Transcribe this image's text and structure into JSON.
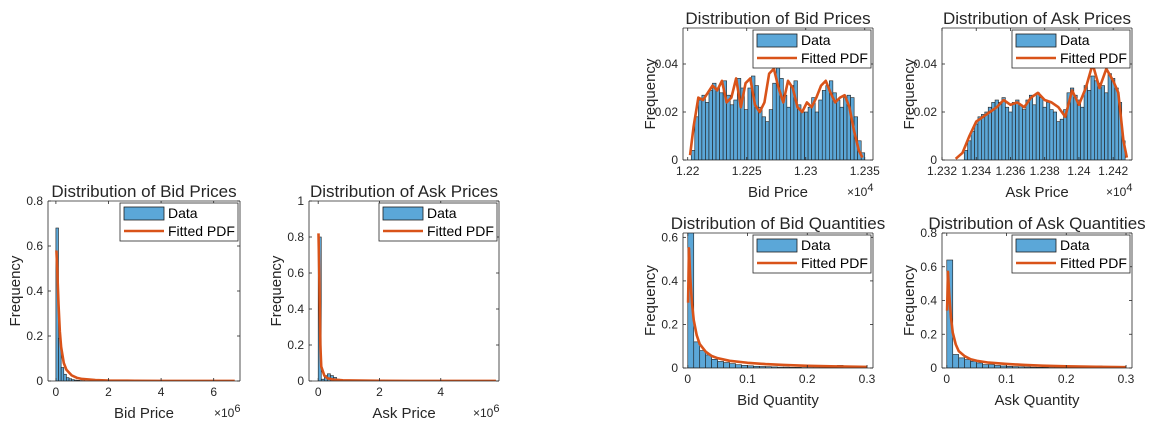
{
  "colors": {
    "bar_fill": "#5ba7d8",
    "bar_edge": "#1f1f1f",
    "pdf_line": "#d95319",
    "axes": "#262626"
  },
  "legend": {
    "data": "Data",
    "fitted": "Fitted PDF"
  },
  "chart_data": [
    {
      "type": "bar",
      "title": "Distribution of Bid Prices",
      "xlabel": "Bid Price",
      "ylabel": "Frequency",
      "x_exponent": "×10^6",
      "xlim": [
        -0.3,
        7.0
      ],
      "ylim": [
        0,
        0.8
      ],
      "xticks": [
        0,
        2,
        4,
        6
      ],
      "xtick_labels": [
        "0",
        "2",
        "4",
        "6"
      ],
      "yticks": [
        0,
        0.2,
        0.4,
        0.6,
        0.8
      ],
      "ytick_labels": [
        "0",
        "0.2",
        "0.4",
        "0.6",
        "0.8"
      ],
      "bin_width": 0.1,
      "bins_x": [
        0,
        0.1,
        0.2,
        0.3,
        0.4,
        0.5,
        0.6,
        0.7,
        0.8,
        0.9,
        1.0
      ],
      "bins_y": [
        0.68,
        0.19,
        0.06,
        0.03,
        0.015,
        0.01,
        0.006,
        0.004,
        0.003,
        0.002,
        0.001
      ],
      "pdf_x": [
        0.02,
        0.05,
        0.1,
        0.15,
        0.2,
        0.3,
        0.4,
        0.6,
        0.8,
        1.0,
        1.5,
        2.0,
        3.0,
        4.0,
        5.0,
        6.0,
        6.8
      ],
      "pdf_y": [
        0.58,
        0.5,
        0.34,
        0.22,
        0.15,
        0.08,
        0.05,
        0.025,
        0.014,
        0.009,
        0.004,
        0.002,
        0.001,
        0.0005,
        0.0003,
        0.0002,
        0.0001
      ],
      "legend_position": "top-right"
    },
    {
      "type": "bar",
      "title": "Distribution of Ask Prices",
      "xlabel": "Ask Price",
      "ylabel": "Frequency",
      "x_exponent": "×10^6",
      "xlim": [
        -0.3,
        5.9
      ],
      "ylim": [
        0,
        1
      ],
      "xticks": [
        0,
        2,
        4
      ],
      "xtick_labels": [
        "0",
        "2",
        "4"
      ],
      "yticks": [
        0,
        0.2,
        0.4,
        0.6,
        0.8,
        1
      ],
      "ytick_labels": [
        "0",
        "0.2",
        "0.4",
        "0.6",
        "0.8",
        "1"
      ],
      "bin_width": 0.1,
      "bins_x": [
        0,
        0.1,
        0.2,
        0.3,
        0.4,
        0.5,
        0.6,
        0.7,
        0.8
      ],
      "bins_y": [
        0.8,
        0.01,
        0.03,
        0.04,
        0.03,
        0.02,
        0.01,
        0.008,
        0.004
      ],
      "pdf_x": [
        0.01,
        0.04,
        0.07,
        0.1,
        0.2,
        0.3,
        0.5,
        0.8,
        1.0,
        2.0,
        3.0,
        4.0,
        5.0,
        5.8
      ],
      "pdf_y": [
        0.82,
        0.55,
        0.2,
        0.08,
        0.03,
        0.015,
        0.008,
        0.004,
        0.003,
        0.001,
        0.0005,
        0.0003,
        0.0002,
        0.0001
      ],
      "legend_position": "top-right"
    },
    {
      "type": "bar",
      "title": "Distribution of Bid Prices",
      "xlabel": "Bid Price",
      "ylabel": "Frequency",
      "x_exponent": "×10^4",
      "xlim": [
        1.2196,
        1.2357
      ],
      "ylim": [
        0,
        0.055
      ],
      "xticks": [
        1.22,
        1.225,
        1.23,
        1.235
      ],
      "xtick_labels": [
        "1.22",
        "1.225",
        "1.23",
        "1.235"
      ],
      "yticks": [
        0,
        0.02,
        0.04
      ],
      "ytick_labels": [
        "0",
        "0.02",
        "0.04"
      ],
      "bin_width": 0.0003,
      "bins_x": [
        1.2203,
        1.2206,
        1.2209,
        1.2212,
        1.2215,
        1.2218,
        1.2221,
        1.2224,
        1.2227,
        1.223,
        1.2233,
        1.2236,
        1.2239,
        1.2242,
        1.2245,
        1.2248,
        1.2251,
        1.2254,
        1.2257,
        1.226,
        1.2263,
        1.2266,
        1.2269,
        1.2272,
        1.2275,
        1.2278,
        1.2281,
        1.2284,
        1.2287,
        1.229,
        1.2293,
        1.2296,
        1.2299,
        1.2302,
        1.2305,
        1.2308,
        1.2311,
        1.2314,
        1.2317,
        1.232,
        1.2323,
        1.2326,
        1.2329,
        1.2332,
        1.2335,
        1.2338,
        1.2341,
        1.2344,
        1.2347
      ],
      "bins_y": [
        0.004,
        0.018,
        0.025,
        0.027,
        0.024,
        0.029,
        0.032,
        0.03,
        0.028,
        0.033,
        0.027,
        0.023,
        0.025,
        0.034,
        0.03,
        0.021,
        0.03,
        0.035,
        0.031,
        0.022,
        0.018,
        0.016,
        0.021,
        0.032,
        0.042,
        0.034,
        0.027,
        0.022,
        0.031,
        0.033,
        0.023,
        0.02,
        0.02,
        0.022,
        0.026,
        0.02,
        0.025,
        0.029,
        0.031,
        0.033,
        0.028,
        0.025,
        0.022,
        0.026,
        0.027,
        0.026,
        0.018,
        0.008,
        0.003
      ],
      "pdf_x": [
        1.2202,
        1.2205,
        1.2209,
        1.2213,
        1.2217,
        1.2221,
        1.2225,
        1.2229,
        1.2233,
        1.2237,
        1.2241,
        1.2245,
        1.2249,
        1.2253,
        1.2257,
        1.2261,
        1.2265,
        1.2269,
        1.2273,
        1.2277,
        1.2281,
        1.2285,
        1.2289,
        1.2293,
        1.2297,
        1.2301,
        1.2305,
        1.2309,
        1.2313,
        1.2317,
        1.2321,
        1.2325,
        1.2329,
        1.2333,
        1.2337,
        1.2341,
        1.2345,
        1.2348
      ],
      "pdf_y": [
        0.002,
        0.014,
        0.026,
        0.025,
        0.028,
        0.031,
        0.029,
        0.033,
        0.024,
        0.026,
        0.034,
        0.022,
        0.032,
        0.034,
        0.023,
        0.02,
        0.024,
        0.036,
        0.038,
        0.03,
        0.024,
        0.033,
        0.03,
        0.022,
        0.02,
        0.024,
        0.022,
        0.026,
        0.031,
        0.033,
        0.028,
        0.024,
        0.026,
        0.027,
        0.022,
        0.012,
        0.004,
        0.001
      ],
      "legend_position": "top-right"
    },
    {
      "type": "bar",
      "title": "Distribution of Ask Prices",
      "xlabel": "Ask Price",
      "ylabel": "Frequency",
      "x_exponent": "×10^4",
      "xlim": [
        1.232,
        1.2431
      ],
      "ylim": [
        0,
        0.055
      ],
      "xticks": [
        1.232,
        1.234,
        1.236,
        1.238,
        1.24,
        1.242
      ],
      "xtick_labels": [
        "1.232",
        "1.234",
        "1.236",
        "1.238",
        "1.24",
        "1.242"
      ],
      "yticks": [
        0,
        0.02,
        0.04
      ],
      "ytick_labels": [
        "0",
        "0.02",
        "0.04"
      ],
      "bin_width": 0.0002,
      "bins_x": [
        1.2333,
        1.2335,
        1.2337,
        1.2339,
        1.2341,
        1.2343,
        1.2345,
        1.2347,
        1.2349,
        1.2351,
        1.2353,
        1.2355,
        1.2357,
        1.2359,
        1.2361,
        1.2363,
        1.2365,
        1.2367,
        1.2369,
        1.2371,
        1.2373,
        1.2375,
        1.2377,
        1.2379,
        1.2381,
        1.2383,
        1.2385,
        1.2387,
        1.2389,
        1.2391,
        1.2393,
        1.2395,
        1.2397,
        1.2399,
        1.2401,
        1.2403,
        1.2405,
        1.2407,
        1.2409,
        1.2411,
        1.2413,
        1.2415,
        1.2417,
        1.2419,
        1.2421,
        1.2423,
        1.2425
      ],
      "bins_y": [
        0.004,
        0.008,
        0.012,
        0.015,
        0.018,
        0.019,
        0.02,
        0.022,
        0.024,
        0.025,
        0.024,
        0.026,
        0.022,
        0.02,
        0.024,
        0.025,
        0.023,
        0.021,
        0.025,
        0.027,
        0.023,
        0.028,
        0.026,
        0.022,
        0.024,
        0.021,
        0.02,
        0.016,
        0.017,
        0.021,
        0.028,
        0.03,
        0.027,
        0.025,
        0.022,
        0.031,
        0.029,
        0.035,
        0.033,
        0.032,
        0.031,
        0.028,
        0.036,
        0.034,
        0.03,
        0.024,
        0.008
      ],
      "pdf_x": [
        1.2328,
        1.2332,
        1.2336,
        1.234,
        1.2344,
        1.2348,
        1.2352,
        1.2356,
        1.236,
        1.2364,
        1.2368,
        1.2372,
        1.2376,
        1.238,
        1.2384,
        1.2388,
        1.2392,
        1.2396,
        1.24,
        1.2404,
        1.2408,
        1.2412,
        1.2416,
        1.242,
        1.2423,
        1.2426,
        1.2428
      ],
      "pdf_y": [
        0.0005,
        0.003,
        0.01,
        0.016,
        0.018,
        0.02,
        0.022,
        0.025,
        0.023,
        0.024,
        0.022,
        0.026,
        0.028,
        0.025,
        0.024,
        0.022,
        0.018,
        0.029,
        0.023,
        0.03,
        0.04,
        0.03,
        0.038,
        0.033,
        0.028,
        0.008,
        0.001
      ],
      "legend_position": "top-right"
    },
    {
      "type": "bar",
      "title": "Distribution of Bid Quantities",
      "xlabel": "Bid Quantity",
      "ylabel": "Frequency",
      "x_exponent": "",
      "xlim": [
        -0.008,
        0.31
      ],
      "ylim": [
        0,
        0.62
      ],
      "xticks": [
        0,
        0.1,
        0.2,
        0.3
      ],
      "xtick_labels": [
        "0",
        "0.1",
        "0.2",
        "0.3"
      ],
      "yticks": [
        0,
        0.2,
        0.4,
        0.6
      ],
      "ytick_labels": [
        "0",
        "0.2",
        "0.4",
        "0.6"
      ],
      "bin_width": 0.01,
      "bins_x": [
        0,
        0.01,
        0.02,
        0.03,
        0.04,
        0.05,
        0.06,
        0.07,
        0.08,
        0.09,
        0.1,
        0.11,
        0.12,
        0.13,
        0.14,
        0.15,
        0.16,
        0.17,
        0.18,
        0.19,
        0.2,
        0.21,
        0.22,
        0.23,
        0.24,
        0.25
      ],
      "bins_y": [
        0.65,
        0.12,
        0.08,
        0.06,
        0.04,
        0.03,
        0.025,
        0.02,
        0.015,
        0.012,
        0.01,
        0.008,
        0.007,
        0.006,
        0.005,
        0.004,
        0.004,
        0.003,
        0.003,
        0.002,
        0.002,
        0.002,
        0.002,
        0.001,
        0.001,
        0.012
      ],
      "pdf_x": [
        0.0005,
        0.002,
        0.004,
        0.007,
        0.01,
        0.015,
        0.02,
        0.03,
        0.04,
        0.05,
        0.07,
        0.1,
        0.13,
        0.16,
        0.2,
        0.25,
        0.3
      ],
      "pdf_y": [
        0.3,
        0.55,
        0.42,
        0.3,
        0.22,
        0.15,
        0.11,
        0.075,
        0.055,
        0.045,
        0.033,
        0.024,
        0.018,
        0.014,
        0.01,
        0.007,
        0.005
      ],
      "legend_position": "top-right"
    },
    {
      "type": "bar",
      "title": "Distribution of Ask Quantities",
      "xlabel": "Ask Quantity",
      "ylabel": "Frequency",
      "x_exponent": "",
      "xlim": [
        -0.008,
        0.31
      ],
      "ylim": [
        0,
        0.8
      ],
      "xticks": [
        0,
        0.1,
        0.2,
        0.3
      ],
      "xtick_labels": [
        "0",
        "0.1",
        "0.2",
        "0.3"
      ],
      "yticks": [
        0,
        0.2,
        0.4,
        0.6,
        0.8
      ],
      "ytick_labels": [
        "0",
        "0.2",
        "0.4",
        "0.6",
        "0.8"
      ],
      "bin_width": 0.01,
      "bins_x": [
        0,
        0.01,
        0.02,
        0.03,
        0.04,
        0.05,
        0.06,
        0.07,
        0.08,
        0.09,
        0.1,
        0.11,
        0.12,
        0.13,
        0.14,
        0.15,
        0.16,
        0.17,
        0.18,
        0.19,
        0.2,
        0.21,
        0.22,
        0.23,
        0.24,
        0.25
      ],
      "bins_y": [
        0.64,
        0.08,
        0.06,
        0.05,
        0.04,
        0.03,
        0.02,
        0.02,
        0.015,
        0.012,
        0.01,
        0.008,
        0.007,
        0.006,
        0.005,
        0.004,
        0.004,
        0.003,
        0.003,
        0.002,
        0.002,
        0.002,
        0.002,
        0.001,
        0.001,
        0.012
      ],
      "pdf_x": [
        0.0005,
        0.002,
        0.004,
        0.007,
        0.01,
        0.015,
        0.02,
        0.03,
        0.04,
        0.05,
        0.07,
        0.1,
        0.13,
        0.16,
        0.2,
        0.25,
        0.3
      ],
      "pdf_y": [
        0.34,
        0.57,
        0.44,
        0.3,
        0.21,
        0.14,
        0.1,
        0.07,
        0.052,
        0.043,
        0.032,
        0.024,
        0.018,
        0.014,
        0.01,
        0.007,
        0.005
      ],
      "legend_position": "top-right"
    }
  ]
}
